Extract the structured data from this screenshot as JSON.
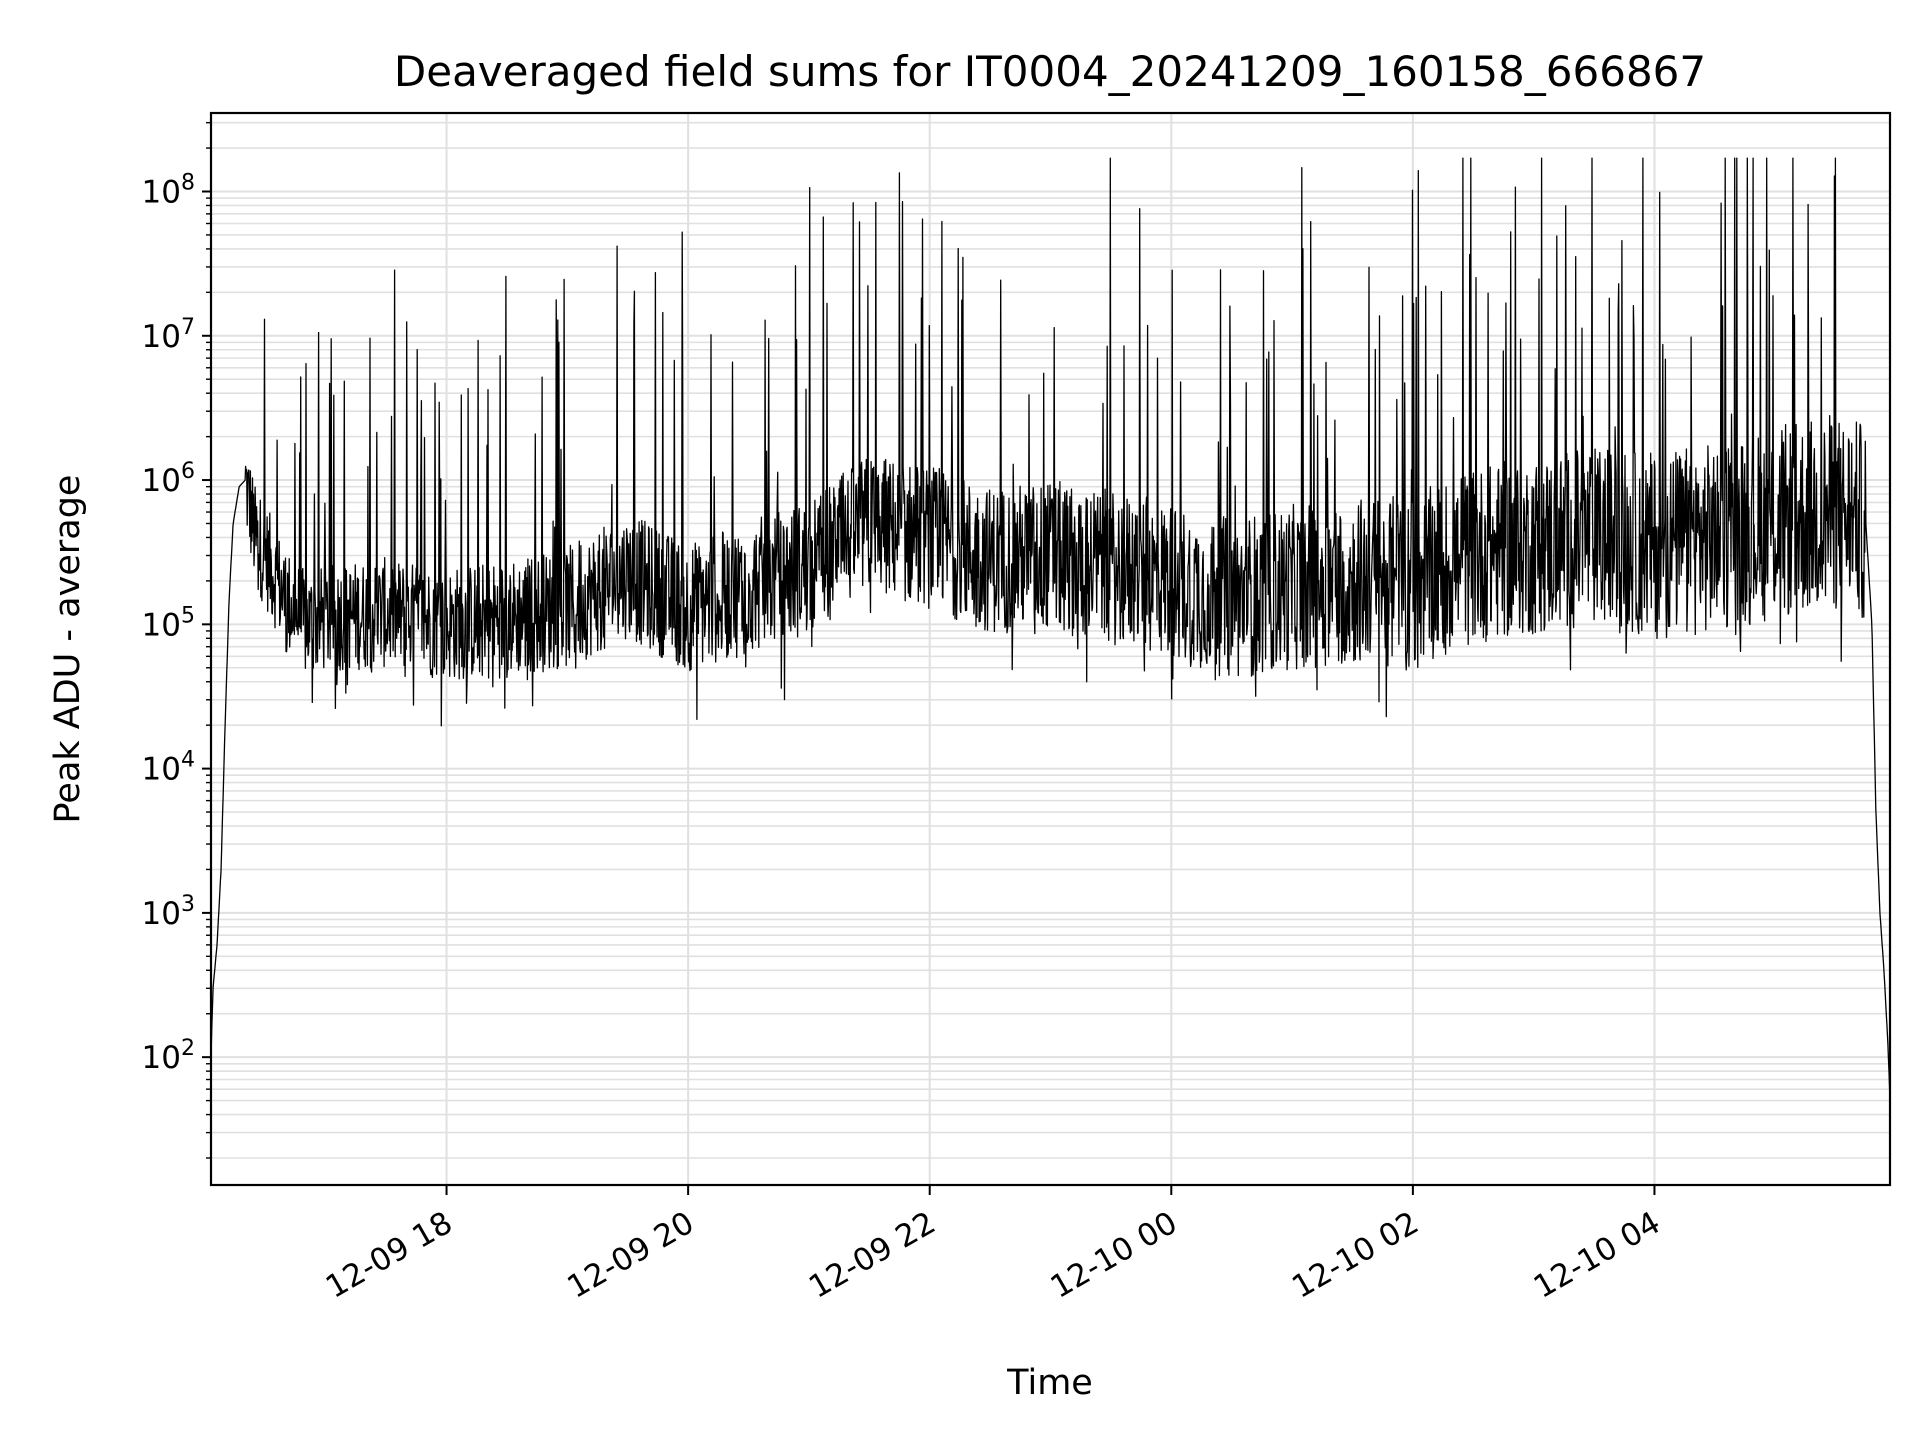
{
  "chart_data": {
    "type": "line",
    "title": "Deaveraged field sums for IT0004_20241209_160158_666867",
    "xlabel": "Time",
    "ylabel": "Peak ADU - average",
    "x_scale": "time",
    "y_scale": "log",
    "xlim": [
      "2024-12-09 16:03",
      "2024-12-10 05:57"
    ],
    "ylim": [
      13,
      350000000
    ],
    "x_ticks": [
      {
        "value": "2024-12-09 18:00",
        "label": "12-09 18"
      },
      {
        "value": "2024-12-09 20:00",
        "label": "12-09 20"
      },
      {
        "value": "2024-12-09 22:00",
        "label": "12-09 22"
      },
      {
        "value": "2024-12-10 00:00",
        "label": "12-10 00"
      },
      {
        "value": "2024-12-10 02:00",
        "label": "12-10 02"
      },
      {
        "value": "2024-12-10 04:00",
        "label": "12-10 04"
      }
    ],
    "y_ticks": [
      {
        "value": 100,
        "base": "10",
        "exp": "2"
      },
      {
        "value": 1000,
        "base": "10",
        "exp": "3"
      },
      {
        "value": 10000,
        "base": "10",
        "exp": "4"
      },
      {
        "value": 100000,
        "base": "10",
        "exp": "5"
      },
      {
        "value": 1000000,
        "base": "10",
        "exp": "6"
      },
      {
        "value": 10000000,
        "base": "10",
        "exp": "7"
      },
      {
        "value": 100000000,
        "base": "10",
        "exp": "8"
      }
    ],
    "grid": true,
    "line_color": "#000000",
    "grid_color": "#e0e0e0",
    "series": [
      {
        "x": [
          "2024-12-09 16:03",
          "2024-12-09 16:04",
          "2024-12-09 16:06",
          "2024-12-09 16:08",
          "2024-12-09 16:10",
          "2024-12-09 16:12",
          "2024-12-09 16:14",
          "2024-12-09 16:17",
          "2024-12-09 16:20",
          "2024-12-09 16:25",
          "2024-12-09 16:30",
          "2024-12-09 16:40",
          "2024-12-09 16:50",
          "2024-12-09 17:00",
          "2024-12-09 17:30",
          "2024-12-09 18:00",
          "2024-12-09 18:30",
          "2024-12-09 19:00",
          "2024-12-09 19:30",
          "2024-12-09 20:00",
          "2024-12-09 20:30",
          "2024-12-09 21:00",
          "2024-12-09 21:30",
          "2024-12-09 22:00",
          "2024-12-09 22:30",
          "2024-12-09 23:00",
          "2024-12-09 23:30",
          "2024-12-10 00:00",
          "2024-12-10 00:30",
          "2024-12-10 01:00",
          "2024-12-10 01:30",
          "2024-12-10 02:00",
          "2024-12-10 02:30",
          "2024-12-10 03:00",
          "2024-12-10 03:30",
          "2024-12-10 04:00",
          "2024-12-10 04:30",
          "2024-12-10 05:00",
          "2024-12-10 05:30",
          "2024-12-10 05:45",
          "2024-12-10 05:48",
          "2024-12-10 05:50",
          "2024-12-10 05:52",
          "2024-12-10 05:54",
          "2024-12-10 05:56",
          "2024-12-10 05:57"
        ],
        "y": [
          100,
          300,
          600,
          2000,
          20000,
          150000,
          500000,
          900000,
          1000000,
          400000,
          300000,
          150000,
          100000,
          110000,
          120000,
          100000,
          110000,
          130000,
          220000,
          130000,
          180000,
          250000,
          500000,
          400000,
          280000,
          300000,
          250000,
          200000,
          150000,
          180000,
          200000,
          200000,
          300000,
          350000,
          400000,
          350000,
          400000,
          500000,
          600000,
          500000,
          100000,
          5000,
          1000,
          400,
          120,
          50
        ]
      }
    ]
  }
}
